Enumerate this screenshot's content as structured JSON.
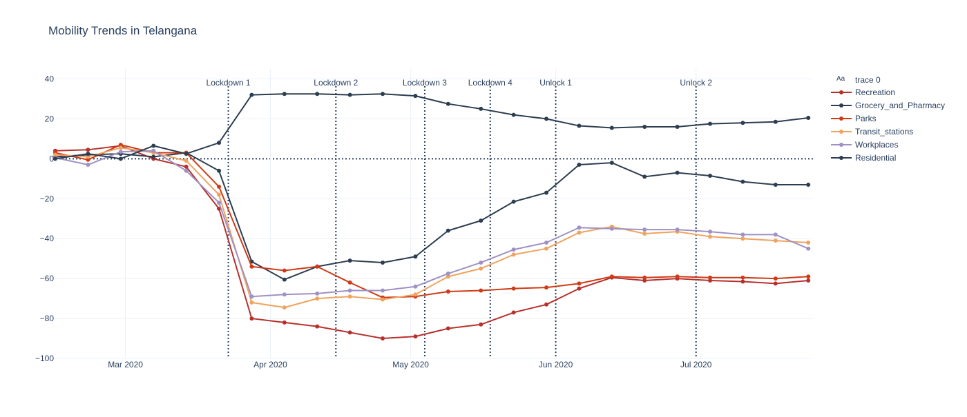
{
  "chart_data": {
    "type": "line",
    "title": "Mobility Trends in Telangana",
    "xlabel": "",
    "ylabel": "",
    "x_range": [
      "2020-02-15",
      "2020-07-26"
    ],
    "ylim": [
      -100,
      45
    ],
    "y_ticks": [
      -100,
      -80,
      -60,
      -40,
      -20,
      0,
      20,
      40
    ],
    "y_tick_labels": [
      "−100",
      "−80",
      "−60",
      "−40",
      "−20",
      "0",
      "20",
      "40"
    ],
    "x_ticks": [
      {
        "date": "2020-03-01",
        "label": "Mar 2020"
      },
      {
        "date": "2020-04-01",
        "label": "Apr 2020"
      },
      {
        "date": "2020-05-01",
        "label": "May 2020"
      },
      {
        "date": "2020-06-01",
        "label": "Jun 2020"
      },
      {
        "date": "2020-07-01",
        "label": "Jul 2020"
      }
    ],
    "grid": true,
    "zero_line": "dotted",
    "legend_position": "right",
    "legend_header": {
      "icon": "Aa",
      "label": "trace 0"
    },
    "x": [
      "2020-02-15",
      "2020-02-22",
      "2020-02-29",
      "2020-03-07",
      "2020-03-14",
      "2020-03-21",
      "2020-03-28",
      "2020-04-04",
      "2020-04-11",
      "2020-04-18",
      "2020-04-25",
      "2020-05-02",
      "2020-05-09",
      "2020-05-16",
      "2020-05-23",
      "2020-05-30",
      "2020-06-06",
      "2020-06-13",
      "2020-06-20",
      "2020-06-27",
      "2020-07-04",
      "2020-07-11",
      "2020-07-18",
      "2020-07-25"
    ],
    "series": [
      {
        "name": "Recreation",
        "color": "#b7312c",
        "values": [
          4,
          4.5,
          6.5,
          0,
          -4,
          -25,
          -80,
          -82,
          -84,
          -87,
          -90,
          -89,
          -85,
          -83,
          -77,
          -73,
          -65,
          -59.5,
          -61,
          -60,
          -61,
          -61.5,
          -62.5,
          -61
        ]
      },
      {
        "name": "Grocery_and_Pharmacy",
        "color": "#2d3e50",
        "values": [
          1,
          2,
          2.5,
          1,
          3,
          -6,
          -51.5,
          -60.5,
          -54,
          -51,
          -52,
          -49,
          -36,
          -31,
          -21.5,
          -17,
          -3,
          -2,
          -9,
          -7,
          -8.5,
          -11.5,
          -13,
          -13
        ]
      },
      {
        "name": "Parks",
        "color": "#cf3a17",
        "values": [
          3,
          -0.5,
          7,
          3,
          3,
          -14,
          -54,
          -56,
          -54,
          -62,
          -69.5,
          -69,
          -66.5,
          -66,
          -65,
          -64.5,
          -62.5,
          -59,
          -59.5,
          -59,
          -59.5,
          -59.5,
          -60,
          -59
        ]
      },
      {
        "name": "Transit_stations",
        "color": "#efa35f",
        "values": [
          2,
          1,
          5.5,
          3,
          -1,
          -18,
          -72,
          -74.5,
          -70,
          -69,
          -70.5,
          -68,
          -59,
          -55,
          -48,
          -45,
          -37,
          -34,
          -37.5,
          -36.5,
          -39,
          -40,
          -41,
          -42
        ]
      },
      {
        "name": "Workplaces",
        "color": "#9e91c4",
        "values": [
          0.5,
          -3,
          3.5,
          4,
          -6,
          -22,
          -69,
          -68,
          -67.5,
          -66,
          -66,
          -64,
          -57.5,
          -52,
          -45.5,
          -42,
          -34.5,
          -35,
          -35.5,
          -35.5,
          -36.5,
          -38,
          -38,
          -45
        ]
      },
      {
        "name": "Residential",
        "color": "#2b3d4f",
        "values": [
          0,
          2.5,
          0,
          6.5,
          2.5,
          8,
          32,
          32.5,
          32.5,
          32,
          32.5,
          31.5,
          27.5,
          25,
          22,
          20,
          16.5,
          15.5,
          16,
          16,
          17.5,
          18,
          18.5,
          20.5
        ]
      }
    ],
    "annotations": [
      {
        "text": "Lockdown 1",
        "date": "2020-03-23"
      },
      {
        "text": "Lockdown 2",
        "date": "2020-04-15"
      },
      {
        "text": "Lockdown 3",
        "date": "2020-05-04"
      },
      {
        "text": "Lockdown 4",
        "date": "2020-05-18"
      },
      {
        "text": "Unlock 1",
        "date": "2020-06-01"
      },
      {
        "text": "Unlock 2",
        "date": "2020-07-01"
      }
    ]
  }
}
